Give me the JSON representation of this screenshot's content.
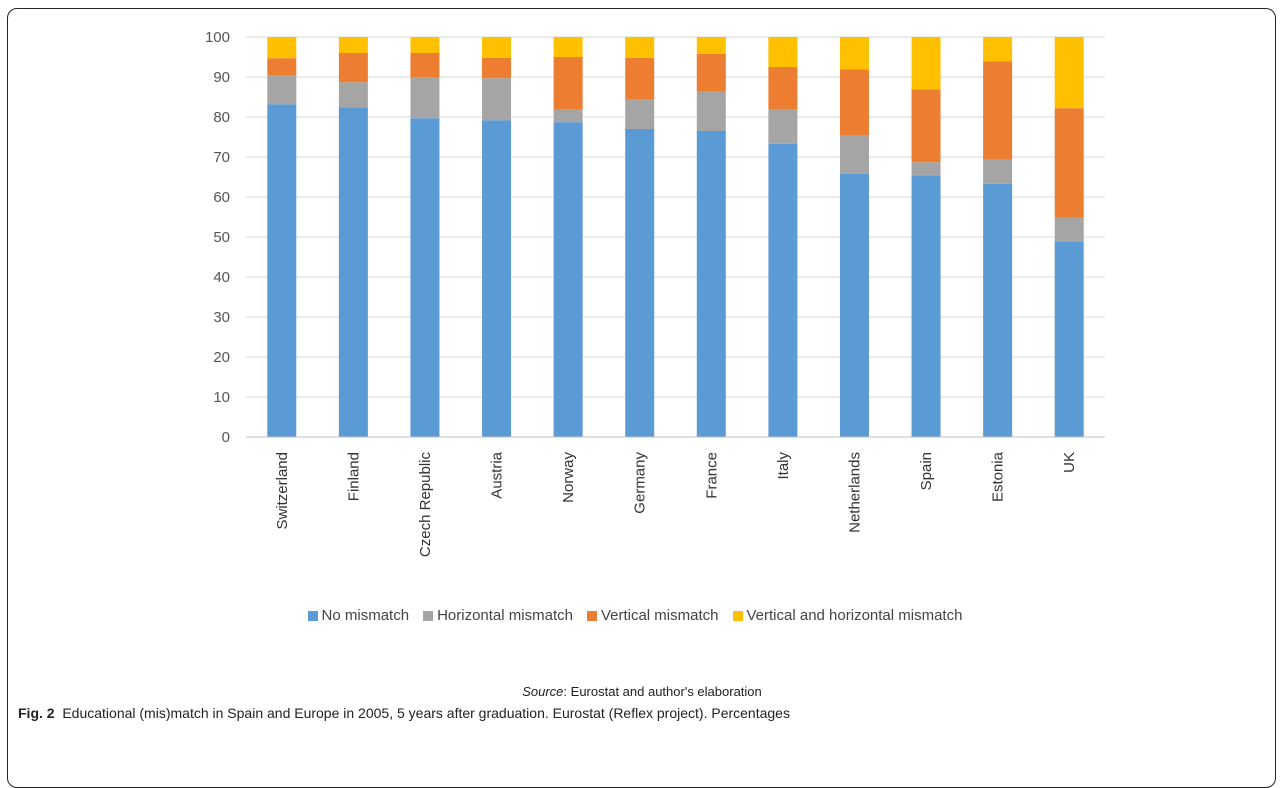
{
  "chart_data": {
    "type": "bar",
    "stacked": true,
    "categories": [
      "Switzerland",
      "Finland",
      "Czech Republic",
      "Austria",
      "Norway",
      "Germany",
      "France",
      "Italy",
      "Netherlands",
      "Spain",
      "Estonia",
      "UK"
    ],
    "series": [
      {
        "name": "No mismatch",
        "color": "#5b9bd5",
        "values": [
          83.2,
          82.4,
          79.7,
          79.2,
          78.7,
          77.0,
          76.5,
          73.3,
          65.8,
          65.4,
          63.3,
          48.9
        ]
      },
      {
        "name": "Horizontal mismatch",
        "color": "#a5a5a5",
        "values": [
          7.3,
          6.3,
          10.1,
          10.5,
          3.1,
          7.3,
          9.8,
          8.6,
          9.5,
          3.3,
          6.0,
          6.1
        ]
      },
      {
        "name": "Vertical mismatch",
        "color": "#ed7d31",
        "values": [
          4.2,
          7.3,
          6.2,
          5.1,
          13.2,
          10.5,
          9.5,
          10.6,
          16.6,
          18.2,
          24.6,
          27.2
        ]
      },
      {
        "name": "Vertical and horizontal mismatch",
        "color": "#ffc000",
        "values": [
          5.3,
          4.0,
          4.0,
          5.2,
          5.0,
          5.2,
          4.2,
          7.5,
          8.1,
          13.1,
          6.1,
          17.8
        ]
      }
    ],
    "ylim": [
      0,
      100
    ],
    "yticks": [
      0,
      10,
      20,
      30,
      40,
      50,
      60,
      70,
      80,
      90,
      100
    ],
    "grid": true,
    "legend": "bottom"
  },
  "source": {
    "label": "Source",
    "text": ": Eurostat and author's elaboration"
  },
  "caption": {
    "label": "Fig. 2",
    "text": "Educational (mis)match in Spain and Europe in 2005, 5 years after graduation. Eurostat (Reflex project). Percentages"
  }
}
